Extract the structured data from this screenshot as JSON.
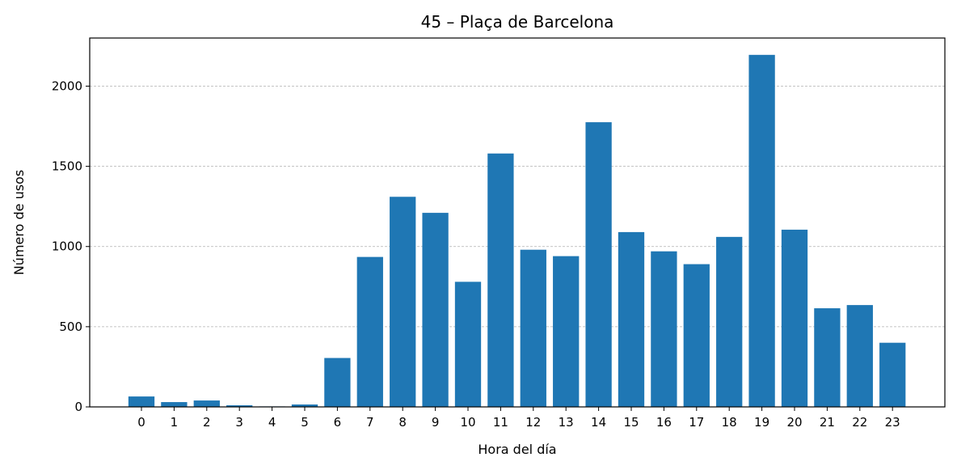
{
  "chart_data": {
    "type": "bar",
    "title": "45 – Plaça de Barcelona",
    "xlabel": "Hora del día",
    "ylabel": "Número de usos",
    "categories": [
      "0",
      "1",
      "2",
      "3",
      "4",
      "5",
      "6",
      "7",
      "8",
      "9",
      "10",
      "11",
      "12",
      "13",
      "14",
      "15",
      "16",
      "17",
      "18",
      "19",
      "20",
      "21",
      "22",
      "23"
    ],
    "values": [
      65,
      30,
      40,
      10,
      3,
      15,
      305,
      935,
      1310,
      1210,
      780,
      1580,
      980,
      940,
      1775,
      1090,
      970,
      890,
      1060,
      2195,
      1105,
      615,
      635,
      400
    ],
    "ylim": [
      0,
      2300
    ],
    "yticks": [
      0,
      500,
      1000,
      1500,
      2000
    ],
    "grid": "y-dashed",
    "legend": "none",
    "bar_color": "#1f77b4"
  }
}
